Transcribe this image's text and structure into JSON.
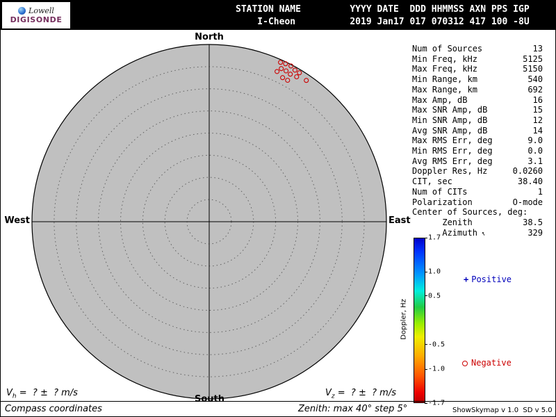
{
  "logo": {
    "name": "Lowell",
    "product": "DIGISONDE",
    "product_color": "#76305f"
  },
  "header": {
    "bg": "#000000",
    "fg": "#ffffff",
    "labels_line": "STATION NAME         YYYY DATE  DDD HHMMSS AXN PPS IGP",
    "values_line": "    I-Cheon          2019 Jan17 017 070312 417 100 -8U",
    "station_name": "I-Cheon",
    "year": "2019",
    "date": "Jan17",
    "ddd": "017",
    "hhmmss": "070312",
    "axn": "417",
    "pps": "100",
    "igp": "-8U"
  },
  "stats": {
    "rows": [
      {
        "label": "Num of Sources",
        "value": "13"
      },
      {
        "label": "Min Freq, kHz",
        "value": "5125"
      },
      {
        "label": "Max Freq, kHz",
        "value": "5150"
      },
      {
        "label": "Min Range, km",
        "value": "540"
      },
      {
        "label": "Max Range, km",
        "value": "692"
      },
      {
        "label": "Max Amp, dB",
        "value": "16"
      },
      {
        "label": "Max SNR Amp, dB",
        "value": "15"
      },
      {
        "label": "Min SNR Amp, dB",
        "value": "12"
      },
      {
        "label": "Avg SNR Amp, dB",
        "value": "14"
      },
      {
        "label": "Max RMS Err, deg",
        "value": "9.0"
      },
      {
        "label": "Min RMS Err, deg",
        "value": "0.0"
      },
      {
        "label": "Avg RMS Err, deg",
        "value": "3.1"
      },
      {
        "label": "Doppler Res, Hz",
        "value": "0.0260"
      },
      {
        "label": "CIT, sec",
        "value": "38.40"
      },
      {
        "label": "Num of CITs",
        "value": "1"
      },
      {
        "label": "Polarization",
        "value": "O-mode"
      },
      {
        "label": "Center of Sources, deg:",
        "value": ""
      },
      {
        "label": "      Zenith",
        "value": "38.5"
      },
      {
        "label": "      Azimuth",
        "value": "329",
        "arrow_deg": 329
      }
    ]
  },
  "chart_data": {
    "type": "scatter",
    "projection": "polar_skymap",
    "zenith_max_deg": 40,
    "zenith_step_deg": 5,
    "rings_deg": [
      5,
      10,
      15,
      20,
      25,
      30,
      35,
      40
    ],
    "disc_fill": "#c0c0c0",
    "point_color": "#cc0000",
    "points_doppler_sign": "negative",
    "compass": {
      "north": "North",
      "south": "South",
      "west": "West",
      "east": "East"
    },
    "points": [
      {
        "az_deg": 24.1,
        "zen_deg": 39.4
      },
      {
        "az_deg": 25.8,
        "zen_deg": 39.6
      },
      {
        "az_deg": 27.7,
        "zen_deg": 39.7
      },
      {
        "az_deg": 25.2,
        "zen_deg": 38.2
      },
      {
        "az_deg": 24.3,
        "zen_deg": 37.2
      },
      {
        "az_deg": 27.0,
        "zen_deg": 38.2
      },
      {
        "az_deg": 29.5,
        "zen_deg": 39.3
      },
      {
        "az_deg": 31.2,
        "zen_deg": 39.3
      },
      {
        "az_deg": 28.8,
        "zen_deg": 38.0
      },
      {
        "az_deg": 27.0,
        "zen_deg": 36.5
      },
      {
        "az_deg": 29.0,
        "zen_deg": 36.5
      },
      {
        "az_deg": 34.5,
        "zen_deg": 38.7
      },
      {
        "az_deg": 31.1,
        "zen_deg": 38.2
      }
    ]
  },
  "colorbar": {
    "title": "Doppler, Hz",
    "max": 1.7,
    "min": -1.7,
    "ticks": [
      1.7,
      1.0,
      0.5,
      -0.5,
      -1.0,
      -1.7
    ]
  },
  "legend": {
    "positive_symbol": "+",
    "positive_label": "Positive",
    "positive_color": "#0000bb",
    "negative_label": "Negative",
    "negative_color": "#cc0000"
  },
  "footer": {
    "vh": {
      "base": "V",
      "sub": "h",
      "expr": " =  ? ±  ? m/s"
    },
    "vz": {
      "base": "V",
      "sub": "z",
      "expr": " =  ? ±  ? m/s"
    },
    "coords_note": "Compass coordinates",
    "zenith_note": "Zenith: max 40°  step 5°",
    "credit": "ShowSkymap v 1.0  SD v 5.0"
  }
}
